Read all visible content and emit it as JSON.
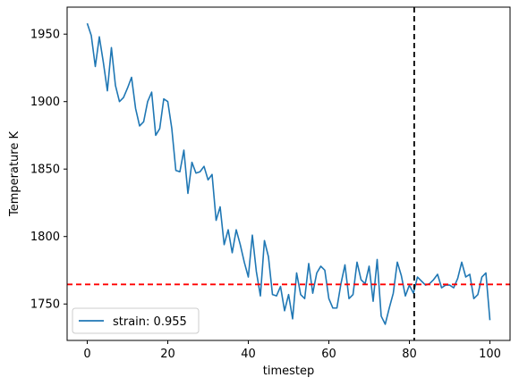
{
  "chart_data": {
    "type": "line",
    "xlabel": "timestep",
    "ylabel": "Temperature K",
    "xlim": [
      -5,
      105
    ],
    "ylim": [
      1723,
      1970
    ],
    "x_ticks": [
      0,
      20,
      40,
      60,
      80,
      100
    ],
    "y_ticks": [
      1750,
      1800,
      1850,
      1900,
      1950
    ],
    "grid": false,
    "legend_placement": "lower-left",
    "series": [
      {
        "name": "strain: 0.955",
        "color": "#1f77b4",
        "x": [
          0,
          1,
          2,
          3,
          4,
          5,
          6,
          7,
          8,
          9,
          10,
          11,
          12,
          13,
          14,
          15,
          16,
          17,
          18,
          19,
          20,
          21,
          22,
          23,
          24,
          25,
          26,
          27,
          28,
          29,
          30,
          31,
          32,
          33,
          34,
          35,
          36,
          37,
          38,
          39,
          40,
          41,
          42,
          43,
          44,
          45,
          46,
          47,
          48,
          49,
          50,
          51,
          52,
          53,
          54,
          55,
          56,
          57,
          58,
          59,
          60,
          61,
          62,
          63,
          64,
          65,
          66,
          67,
          68,
          69,
          70,
          71,
          72,
          73,
          74,
          75,
          76,
          77,
          78,
          79,
          80,
          81,
          82,
          83,
          84,
          85,
          86,
          87,
          88,
          89,
          90,
          91,
          92,
          93,
          94,
          95,
          96,
          97,
          98,
          99,
          100
        ],
        "values": [
          1958,
          1949,
          1926,
          1948,
          1929,
          1908,
          1940,
          1912,
          1900,
          1903,
          1910,
          1918,
          1895,
          1882,
          1885,
          1900,
          1907,
          1875,
          1880,
          1902,
          1900,
          1880,
          1849,
          1848,
          1864,
          1832,
          1855,
          1847,
          1848,
          1852,
          1842,
          1846,
          1812,
          1822,
          1794,
          1805,
          1788,
          1805,
          1794,
          1781,
          1770,
          1801,
          1774,
          1756,
          1797,
          1785,
          1757,
          1756,
          1763,
          1745,
          1757,
          1739,
          1773,
          1757,
          1754,
          1780,
          1758,
          1773,
          1778,
          1775,
          1754,
          1747,
          1747,
          1765,
          1779,
          1754,
          1757,
          1781,
          1768,
          1765,
          1778,
          1752,
          1783,
          1741,
          1735,
          1747,
          1758,
          1781,
          1771,
          1756,
          1764,
          1758,
          1770,
          1767,
          1764,
          1765,
          1768,
          1772,
          1762,
          1764,
          1764,
          1762,
          1769,
          1781,
          1770,
          1772,
          1754,
          1757,
          1770,
          1773,
          1738
        ]
      }
    ],
    "reference_lines": [
      {
        "orientation": "horizontal",
        "value": 1764.5,
        "color": "#ff0000",
        "style": "dashed"
      },
      {
        "orientation": "vertical",
        "value": 81.2,
        "color": "#000000",
        "style": "dashed"
      }
    ]
  }
}
